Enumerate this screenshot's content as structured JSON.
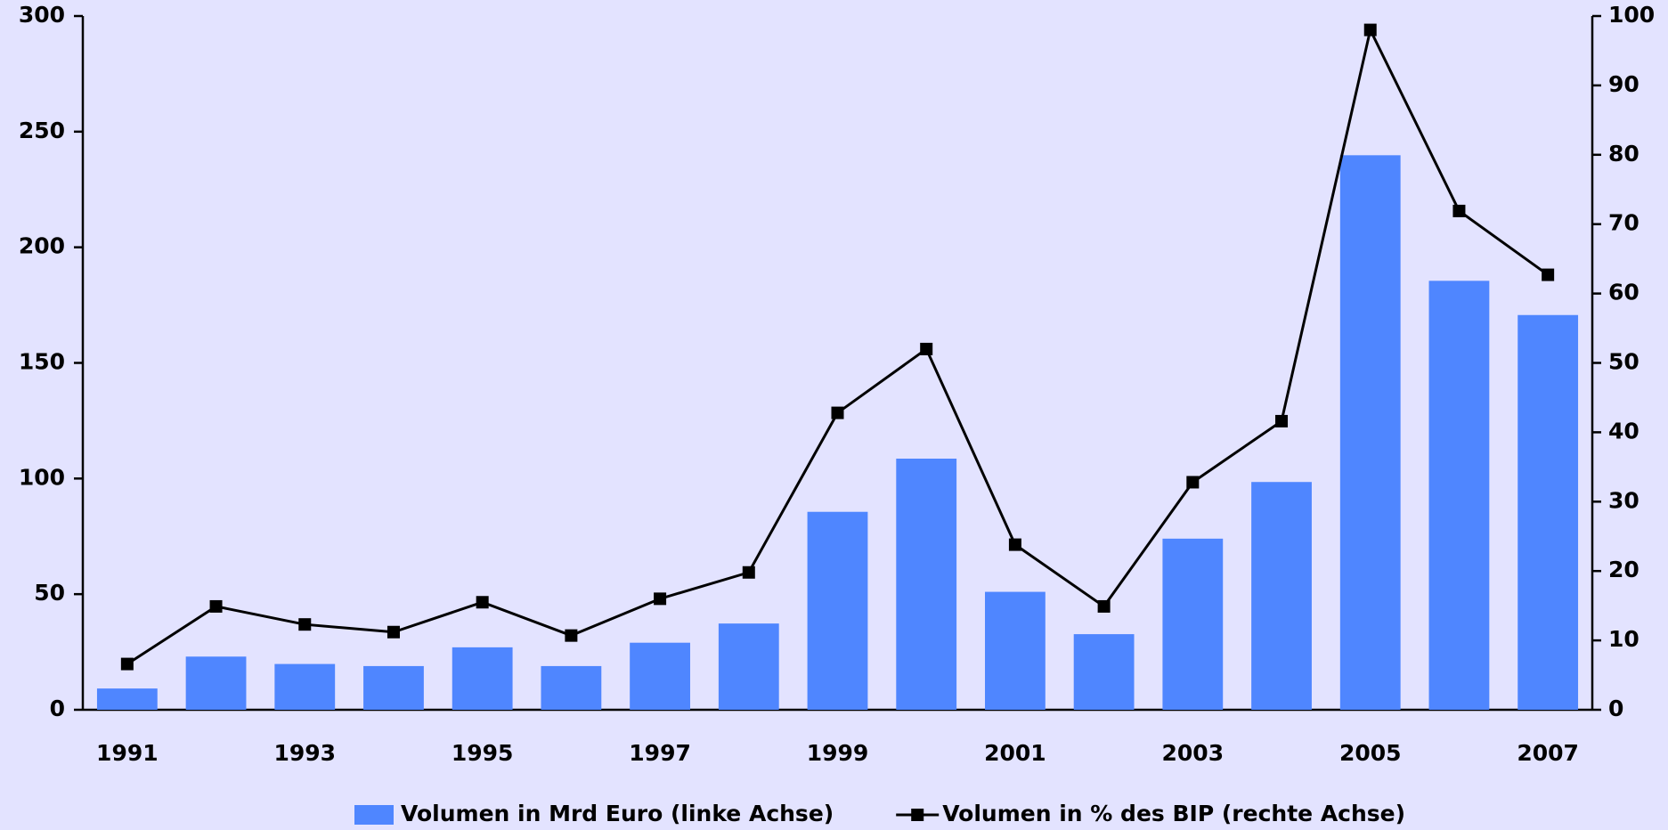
{
  "chart_data": {
    "type": "bar-line",
    "categories": [
      "1991",
      null,
      "1993",
      null,
      "1995",
      null,
      "1997",
      null,
      "1999",
      null,
      "2001",
      null,
      "2003",
      null,
      "2005",
      null,
      "2007"
    ],
    "series": [
      {
        "name": "Volumen in Mrd Euro (linke Achse)",
        "type": "bar",
        "color": "#4f86ff",
        "values": [
          9.2,
          23,
          19.8,
          18.9,
          27,
          18.9,
          29,
          37.3,
          85.6,
          108.6,
          51,
          32.7,
          74,
          98.5,
          239.8,
          185.5,
          170.7
        ]
      },
      {
        "name": "Volumen in % des BIP (rechte Achse)",
        "type": "line",
        "axis": "y2",
        "color": "#000000",
        "values": [
          6.6,
          14.9,
          12.3,
          11.2,
          15.5,
          10.7,
          16,
          19.8,
          42.8,
          52,
          23.8,
          14.9,
          32.8,
          41.6,
          98,
          71.9,
          62.7
        ]
      }
    ],
    "ylim": [
      0,
      300
    ],
    "yticks": [
      0,
      50,
      100,
      150,
      200,
      250,
      300
    ],
    "y2lim": [
      0,
      100
    ],
    "y2ticks": [
      0,
      10,
      20,
      30,
      40,
      50,
      60,
      70,
      80,
      90,
      100
    ],
    "legend": "bottom"
  }
}
